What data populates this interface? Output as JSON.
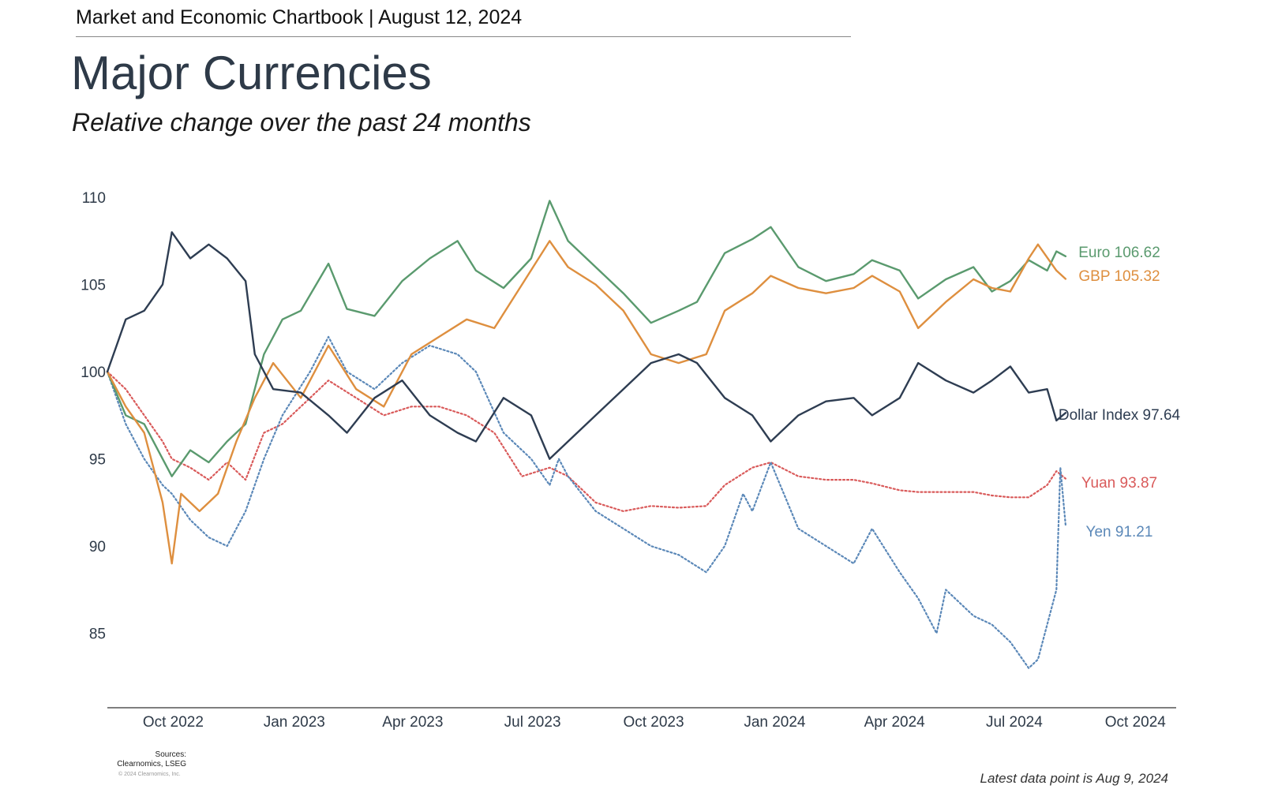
{
  "header": {
    "chartbook": "Market and Economic Chartbook | August 12, 2024",
    "title": "Major Currencies",
    "subtitle": "Relative change over the past 24 months"
  },
  "footer": {
    "sources": "Sources: Clearnomics, LSEG",
    "copyright": "© 2024 Clearnomics, Inc.",
    "latest": "Latest data point is Aug 9, 2024"
  },
  "chart_data": {
    "type": "line",
    "title": "Major Currencies",
    "subtitle": "Relative change over the past 24 months",
    "x_ticks": [
      "Oct 2022",
      "Jan 2023",
      "Apr 2023",
      "Jul 2023",
      "Oct 2023",
      "Jan 2024",
      "Apr 2024",
      "Jul 2024",
      "Oct 2024"
    ],
    "x_range": [
      "2022-08-12",
      "2024-11-01"
    ],
    "y_ticks": [
      85,
      90,
      95,
      100,
      105,
      110
    ],
    "ylim": [
      81.5,
      111
    ],
    "grid": false,
    "legend": "end-labels",
    "series": [
      {
        "name": "Euro",
        "end_label": "Euro 106.62",
        "color": "#5a9a6e",
        "style": "solid",
        "points": [
          [
            "2022-08-12",
            100
          ],
          [
            "2022-08-26",
            97.5
          ],
          [
            "2022-09-09",
            97
          ],
          [
            "2022-09-23",
            95
          ],
          [
            "2022-09-30",
            94
          ],
          [
            "2022-10-14",
            95.5
          ],
          [
            "2022-10-28",
            94.8
          ],
          [
            "2022-11-11",
            96
          ],
          [
            "2022-11-25",
            97
          ],
          [
            "2022-12-09",
            101
          ],
          [
            "2022-12-23",
            103
          ],
          [
            "2023-01-06",
            103.5
          ],
          [
            "2023-01-27",
            106.2
          ],
          [
            "2023-02-10",
            103.6
          ],
          [
            "2023-03-03",
            103.2
          ],
          [
            "2023-03-24",
            105.2
          ],
          [
            "2023-04-14",
            106.5
          ],
          [
            "2023-05-05",
            107.5
          ],
          [
            "2023-05-19",
            105.8
          ],
          [
            "2023-06-09",
            104.8
          ],
          [
            "2023-06-30",
            106.5
          ],
          [
            "2023-07-14",
            109.8
          ],
          [
            "2023-07-28",
            107.5
          ],
          [
            "2023-08-18",
            106
          ],
          [
            "2023-09-08",
            104.5
          ],
          [
            "2023-09-29",
            102.8
          ],
          [
            "2023-10-20",
            103.5
          ],
          [
            "2023-11-03",
            104
          ],
          [
            "2023-11-24",
            106.8
          ],
          [
            "2023-12-15",
            107.6
          ],
          [
            "2023-12-29",
            108.3
          ],
          [
            "2024-01-19",
            106
          ],
          [
            "2024-02-09",
            105.2
          ],
          [
            "2024-03-01",
            105.6
          ],
          [
            "2024-03-15",
            106.4
          ],
          [
            "2024-04-05",
            105.8
          ],
          [
            "2024-04-19",
            104.2
          ],
          [
            "2024-05-10",
            105.3
          ],
          [
            "2024-05-31",
            106
          ],
          [
            "2024-06-14",
            104.6
          ],
          [
            "2024-06-28",
            105.2
          ],
          [
            "2024-07-12",
            106.4
          ],
          [
            "2024-07-26",
            105.8
          ],
          [
            "2024-08-02",
            106.9
          ],
          [
            "2024-08-09",
            106.62
          ]
        ]
      },
      {
        "name": "GBP",
        "end_label": "GBP 105.32",
        "color": "#de8f3f",
        "style": "solid",
        "points": [
          [
            "2022-08-12",
            100
          ],
          [
            "2022-08-26",
            98
          ],
          [
            "2022-09-09",
            96.5
          ],
          [
            "2022-09-23",
            92.5
          ],
          [
            "2022-09-30",
            89
          ],
          [
            "2022-10-07",
            93
          ],
          [
            "2022-10-21",
            92
          ],
          [
            "2022-11-04",
            93
          ],
          [
            "2022-11-18",
            96
          ],
          [
            "2022-12-02",
            98.5
          ],
          [
            "2022-12-16",
            100.5
          ],
          [
            "2023-01-06",
            98.5
          ],
          [
            "2023-01-27",
            101.5
          ],
          [
            "2023-02-17",
            99
          ],
          [
            "2023-03-10",
            98
          ],
          [
            "2023-03-31",
            101
          ],
          [
            "2023-04-21",
            102
          ],
          [
            "2023-05-12",
            103
          ],
          [
            "2023-06-02",
            102.5
          ],
          [
            "2023-06-23",
            105
          ],
          [
            "2023-07-14",
            107.5
          ],
          [
            "2023-07-28",
            106
          ],
          [
            "2023-08-18",
            105
          ],
          [
            "2023-09-08",
            103.5
          ],
          [
            "2023-09-29",
            101
          ],
          [
            "2023-10-20",
            100.5
          ],
          [
            "2023-11-10",
            101
          ],
          [
            "2023-11-24",
            103.5
          ],
          [
            "2023-12-15",
            104.5
          ],
          [
            "2023-12-29",
            105.5
          ],
          [
            "2024-01-19",
            104.8
          ],
          [
            "2024-02-09",
            104.5
          ],
          [
            "2024-03-01",
            104.8
          ],
          [
            "2024-03-15",
            105.5
          ],
          [
            "2024-04-05",
            104.6
          ],
          [
            "2024-04-19",
            102.5
          ],
          [
            "2024-05-10",
            104
          ],
          [
            "2024-05-31",
            105.3
          ],
          [
            "2024-06-14",
            104.8
          ],
          [
            "2024-06-28",
            104.6
          ],
          [
            "2024-07-12",
            106.5
          ],
          [
            "2024-07-19",
            107.3
          ],
          [
            "2024-08-02",
            105.8
          ],
          [
            "2024-08-09",
            105.32
          ]
        ]
      },
      {
        "name": "Dollar Index",
        "end_label": "Dollar Index 97.64",
        "color": "#2e3d52",
        "style": "solid",
        "points": [
          [
            "2022-08-12",
            100
          ],
          [
            "2022-08-19",
            101.5
          ],
          [
            "2022-08-26",
            103
          ],
          [
            "2022-09-09",
            103.5
          ],
          [
            "2022-09-23",
            105
          ],
          [
            "2022-09-30",
            108
          ],
          [
            "2022-10-14",
            106.5
          ],
          [
            "2022-10-28",
            107.3
          ],
          [
            "2022-11-11",
            106.5
          ],
          [
            "2022-11-25",
            105.2
          ],
          [
            "2022-12-02",
            101
          ],
          [
            "2022-12-16",
            99
          ],
          [
            "2023-01-06",
            98.8
          ],
          [
            "2023-01-27",
            97.5
          ],
          [
            "2023-02-10",
            96.5
          ],
          [
            "2023-03-03",
            98.5
          ],
          [
            "2023-03-24",
            99.5
          ],
          [
            "2023-04-14",
            97.5
          ],
          [
            "2023-05-05",
            96.5
          ],
          [
            "2023-05-19",
            96
          ],
          [
            "2023-06-09",
            98.5
          ],
          [
            "2023-06-30",
            97.5
          ],
          [
            "2023-07-14",
            95
          ],
          [
            "2023-07-28",
            96
          ],
          [
            "2023-08-18",
            97.5
          ],
          [
            "2023-09-08",
            99
          ],
          [
            "2023-09-29",
            100.5
          ],
          [
            "2023-10-20",
            101
          ],
          [
            "2023-11-03",
            100.5
          ],
          [
            "2023-11-24",
            98.5
          ],
          [
            "2023-12-15",
            97.5
          ],
          [
            "2023-12-29",
            96
          ],
          [
            "2024-01-19",
            97.5
          ],
          [
            "2024-02-09",
            98.3
          ],
          [
            "2024-03-01",
            98.5
          ],
          [
            "2024-03-15",
            97.5
          ],
          [
            "2024-04-05",
            98.5
          ],
          [
            "2024-04-19",
            100.5
          ],
          [
            "2024-05-10",
            99.5
          ],
          [
            "2024-05-31",
            98.8
          ],
          [
            "2024-06-14",
            99.5
          ],
          [
            "2024-06-28",
            100.3
          ],
          [
            "2024-07-12",
            98.8
          ],
          [
            "2024-07-26",
            99
          ],
          [
            "2024-08-02",
            97.2
          ],
          [
            "2024-08-09",
            97.64
          ]
        ]
      },
      {
        "name": "Yuan",
        "end_label": "Yuan 93.87",
        "color": "#d95a5a",
        "style": "dotted",
        "points": [
          [
            "2022-08-12",
            100
          ],
          [
            "2022-08-26",
            99
          ],
          [
            "2022-09-09",
            97.5
          ],
          [
            "2022-09-23",
            96
          ],
          [
            "2022-09-30",
            95
          ],
          [
            "2022-10-14",
            94.5
          ],
          [
            "2022-10-28",
            93.8
          ],
          [
            "2022-11-11",
            94.8
          ],
          [
            "2022-11-25",
            93.8
          ],
          [
            "2022-12-09",
            96.5
          ],
          [
            "2022-12-23",
            97
          ],
          [
            "2023-01-13",
            98.5
          ],
          [
            "2023-01-27",
            99.5
          ],
          [
            "2023-02-17",
            98.5
          ],
          [
            "2023-03-10",
            97.5
          ],
          [
            "2023-03-31",
            98
          ],
          [
            "2023-04-21",
            98
          ],
          [
            "2023-05-12",
            97.5
          ],
          [
            "2023-06-02",
            96.5
          ],
          [
            "2023-06-23",
            94
          ],
          [
            "2023-07-14",
            94.5
          ],
          [
            "2023-07-28",
            94
          ],
          [
            "2023-08-18",
            92.5
          ],
          [
            "2023-09-08",
            92
          ],
          [
            "2023-09-29",
            92.3
          ],
          [
            "2023-10-20",
            92.2
          ],
          [
            "2023-11-10",
            92.3
          ],
          [
            "2023-11-24",
            93.5
          ],
          [
            "2023-12-15",
            94.5
          ],
          [
            "2023-12-29",
            94.8
          ],
          [
            "2024-01-19",
            94
          ],
          [
            "2024-02-09",
            93.8
          ],
          [
            "2024-03-01",
            93.8
          ],
          [
            "2024-03-15",
            93.6
          ],
          [
            "2024-04-05",
            93.2
          ],
          [
            "2024-04-19",
            93.1
          ],
          [
            "2024-05-10",
            93.1
          ],
          [
            "2024-05-31",
            93.1
          ],
          [
            "2024-06-14",
            92.9
          ],
          [
            "2024-06-28",
            92.8
          ],
          [
            "2024-07-12",
            92.8
          ],
          [
            "2024-07-26",
            93.5
          ],
          [
            "2024-08-02",
            94.3
          ],
          [
            "2024-08-09",
            93.87
          ]
        ]
      },
      {
        "name": "Yen",
        "end_label": "Yen 91.21",
        "color": "#5b88b8",
        "style": "dotted",
        "points": [
          [
            "2022-08-12",
            100
          ],
          [
            "2022-08-26",
            97
          ],
          [
            "2022-09-09",
            95
          ],
          [
            "2022-09-23",
            93.5
          ],
          [
            "2022-09-30",
            93
          ],
          [
            "2022-10-14",
            91.5
          ],
          [
            "2022-10-28",
            90.5
          ],
          [
            "2022-11-11",
            90
          ],
          [
            "2022-11-25",
            92
          ],
          [
            "2022-12-09",
            95
          ],
          [
            "2022-12-23",
            97.5
          ],
          [
            "2023-01-13",
            100
          ],
          [
            "2023-01-27",
            102
          ],
          [
            "2023-02-10",
            100
          ],
          [
            "2023-03-03",
            99
          ],
          [
            "2023-03-24",
            100.5
          ],
          [
            "2023-04-14",
            101.5
          ],
          [
            "2023-05-05",
            101
          ],
          [
            "2023-05-19",
            100
          ],
          [
            "2023-06-09",
            96.5
          ],
          [
            "2023-06-30",
            95
          ],
          [
            "2023-07-14",
            93.5
          ],
          [
            "2023-07-21",
            95
          ],
          [
            "2023-07-28",
            94
          ],
          [
            "2023-08-18",
            92
          ],
          [
            "2023-09-08",
            91
          ],
          [
            "2023-09-29",
            90
          ],
          [
            "2023-10-20",
            89.5
          ],
          [
            "2023-11-10",
            88.5
          ],
          [
            "2023-11-24",
            90
          ],
          [
            "2023-12-08",
            93
          ],
          [
            "2023-12-15",
            92
          ],
          [
            "2023-12-29",
            94.8
          ],
          [
            "2024-01-19",
            91
          ],
          [
            "2024-02-09",
            90
          ],
          [
            "2024-03-01",
            89
          ],
          [
            "2024-03-15",
            91
          ],
          [
            "2024-04-05",
            88.5
          ],
          [
            "2024-04-19",
            87
          ],
          [
            "2024-05-03",
            85
          ],
          [
            "2024-05-10",
            87.5
          ],
          [
            "2024-05-31",
            86
          ],
          [
            "2024-06-14",
            85.5
          ],
          [
            "2024-06-28",
            84.5
          ],
          [
            "2024-07-12",
            83
          ],
          [
            "2024-07-19",
            83.5
          ],
          [
            "2024-07-26",
            85.5
          ],
          [
            "2024-08-02",
            87.5
          ],
          [
            "2024-08-05",
            94.5
          ],
          [
            "2024-08-09",
            91.21
          ]
        ]
      }
    ]
  }
}
